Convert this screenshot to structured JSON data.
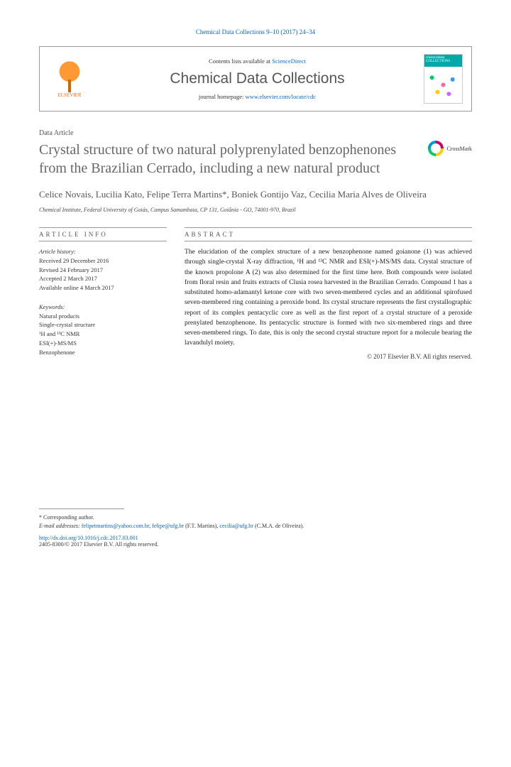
{
  "journal_ref": "Chemical Data Collections 9–10 (2017) 24–34",
  "header": {
    "publisher": "ELSEVIER",
    "contents_prefix": "Contents lists available at ",
    "contents_link": "ScienceDirect",
    "journal_name": "Chemical Data Collections",
    "homepage_prefix": "journal homepage: ",
    "homepage_url": "www.elsevier.com/locate/cdc",
    "cover_label": "chemicaldata COLLECTIONS"
  },
  "article": {
    "type": "Data Article",
    "title": "Crystal structure of two natural polyprenylated benzophenones from the Brazilian Cerrado, including a new natural product",
    "crossmark": "CrossMark",
    "authors": "Celice Novais, Lucilia Kato, Felipe Terra Martins*, Boniek Gontijo Vaz, Cecilia Maria Alves de Oliveira",
    "affiliation": "Chemical Institute, Federal University of Goiás, Campus Samambaia, CP 131, Goiânia - GO, 74001-970, Brazil"
  },
  "info": {
    "head": "ARTICLE INFO",
    "history_label": "Article history:",
    "received": "Received 29 December 2016",
    "revised": "Revised 24 February 2017",
    "accepted": "Accepted 2 March 2017",
    "online": "Available online 4 March 2017",
    "keywords_label": "Keywords:",
    "k1": "Natural products",
    "k2": "Single-crystal structure",
    "k3": "¹H and ¹³C NMR",
    "k4": "ESI(+)-MS/MS",
    "k5": "Benzophenone"
  },
  "abstract": {
    "head": "ABSTRACT",
    "text": "The elucidation of the complex structure of a new benzophenone named goianone (1) was achieved through single-crystal X-ray diffraction, ¹H and ¹³C NMR and ESI(+)-MS/MS data. Crystal structure of the known propolone A (2) was also determined for the first time here. Both compounds were isolated from floral resin and fruits extracts of Clusia rosea harvested in the Brazilian Cerrado. Compound 1 has a substituted homo-adamantyl ketone core with two seven-membered cycles and an additional spirofused seven-membered ring containing a peroxide bond. Its crystal structure represents the first crystallographic report of its complex pentacyclic core as well as the first report of a crystal structure of a peroxide prenylated benzophenone. Its pentacyclic structure is formed with two six-membered rings and three seven-membered rings. To date, this is only the second crystal structure report for a molecule bearing the lavandulyl moiety.",
    "copyright": "© 2017 Elsevier B.V. All rights reserved."
  },
  "footer": {
    "corr_label": "* Corresponding author.",
    "email_label": "E-mail addresses:",
    "email1": "felipetmartins@yahoo.com.br",
    "email2": "felipe@ufg.br",
    "email1_name": "(F.T. Martins),",
    "email3": "cecilia@ufg.br",
    "email3_name": "(C.M.A. de Oliveira).",
    "doi": "http://dx.doi.org/10.1016/j.cdc.2017.03.001",
    "issn": "2405-8300/© 2017 Elsevier B.V. All rights reserved."
  }
}
